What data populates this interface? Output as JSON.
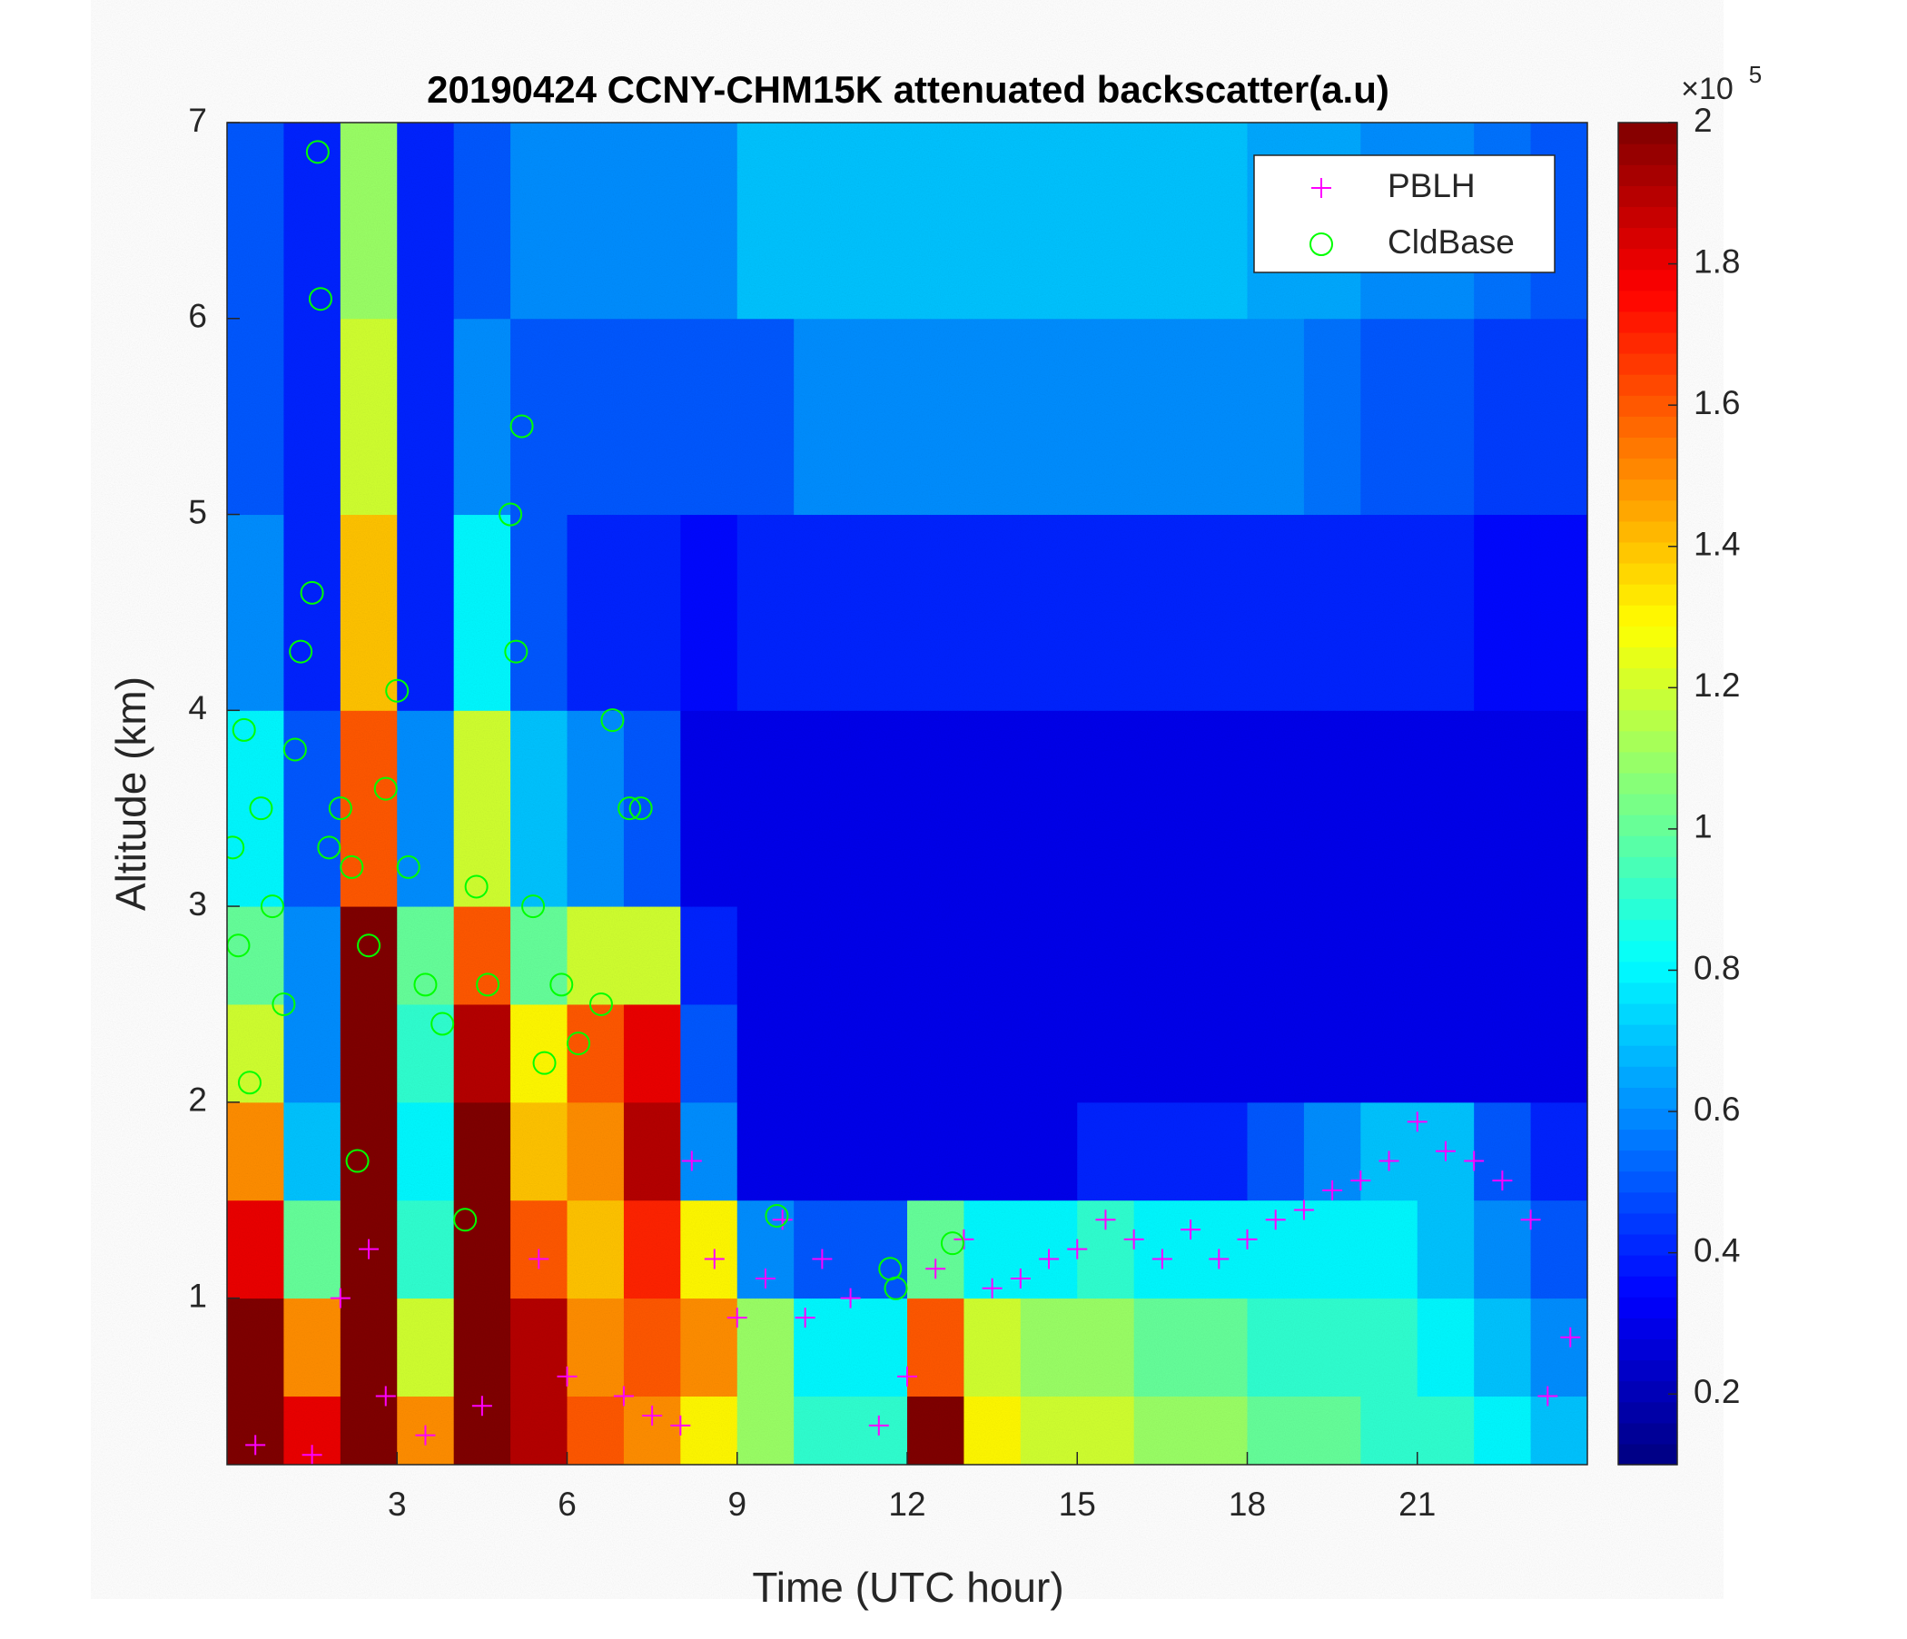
{
  "chart_data": {
    "type": "heatmap",
    "title": "20190424 CCNY-CHM15K attenuated backscatter(a.u)",
    "xlabel": "Time (UTC hour)",
    "ylabel": "Altitude (km)",
    "xlim": [
      0,
      24
    ],
    "ylim": [
      0.15,
      7
    ],
    "xticks": [
      3,
      6,
      9,
      12,
      15,
      18,
      21
    ],
    "yticks": [
      1,
      2,
      3,
      4,
      5,
      6,
      7
    ],
    "x_edges": [
      0,
      1,
      2,
      3,
      4,
      5,
      6,
      7,
      8,
      9,
      10,
      11,
      12,
      13,
      14,
      15,
      16,
      17,
      18,
      19,
      20,
      21,
      22,
      23,
      24
    ],
    "y_edges": [
      0.15,
      0.5,
      1,
      1.5,
      2,
      2.5,
      3,
      4,
      5,
      6,
      7
    ],
    "z": [
      [
        2,
        1.8,
        2,
        1.5,
        2,
        1.9,
        1.6,
        1.5,
        1.3,
        1.1,
        0.9,
        0.9,
        2,
        1.3,
        1.2,
        1.2,
        1.1,
        1.1,
        1.0,
        1.0,
        0.9,
        0.9,
        0.8,
        0.7
      ],
      [
        2,
        1.5,
        2,
        1.2,
        2,
        1.9,
        1.5,
        1.6,
        1.5,
        1.1,
        0.8,
        0.8,
        1.6,
        1.2,
        1.1,
        1.1,
        1.0,
        1.0,
        0.9,
        0.9,
        0.9,
        0.8,
        0.7,
        0.6
      ],
      [
        1.8,
        1.0,
        2,
        0.9,
        2,
        1.6,
        1.4,
        1.7,
        1.3,
        0.6,
        0.5,
        0.5,
        1.0,
        0.8,
        0.8,
        0.9,
        0.8,
        0.8,
        0.8,
        0.8,
        0.8,
        0.7,
        0.6,
        0.5
      ],
      [
        1.5,
        0.7,
        2,
        0.8,
        2,
        1.4,
        1.5,
        1.9,
        0.6,
        0.3,
        0.3,
        0.3,
        0.3,
        0.3,
        0.3,
        0.4,
        0.4,
        0.4,
        0.5,
        0.6,
        0.7,
        0.7,
        0.5,
        0.4
      ],
      [
        1.2,
        0.6,
        2,
        0.9,
        1.9,
        1.3,
        1.6,
        1.8,
        0.5,
        0.3,
        0.3,
        0.3,
        0.3,
        0.3,
        0.3,
        0.3,
        0.3,
        0.3,
        0.3,
        0.3,
        0.3,
        0.3,
        0.3,
        0.3
      ],
      [
        1.0,
        0.6,
        2,
        1.0,
        1.6,
        1.0,
        1.2,
        1.2,
        0.4,
        0.3,
        0.3,
        0.3,
        0.3,
        0.3,
        0.3,
        0.3,
        0.3,
        0.3,
        0.3,
        0.3,
        0.3,
        0.3,
        0.3,
        0.3
      ],
      [
        0.8,
        0.5,
        1.6,
        0.6,
        1.2,
        0.7,
        0.6,
        0.5,
        0.3,
        0.3,
        0.3,
        0.3,
        0.3,
        0.3,
        0.3,
        0.3,
        0.3,
        0.3,
        0.3,
        0.3,
        0.3,
        0.3,
        0.3,
        0.3
      ],
      [
        0.6,
        0.4,
        1.4,
        0.4,
        0.8,
        0.5,
        0.4,
        0.4,
        0.35,
        0.4,
        0.4,
        0.4,
        0.4,
        0.4,
        0.4,
        0.4,
        0.4,
        0.4,
        0.4,
        0.4,
        0.4,
        0.4,
        0.35,
        0.35
      ],
      [
        0.5,
        0.4,
        1.2,
        0.4,
        0.6,
        0.5,
        0.5,
        0.5,
        0.5,
        0.5,
        0.6,
        0.6,
        0.6,
        0.6,
        0.6,
        0.6,
        0.6,
        0.6,
        0.6,
        0.55,
        0.5,
        0.5,
        0.45,
        0.45
      ],
      [
        0.5,
        0.4,
        1.1,
        0.4,
        0.5,
        0.6,
        0.6,
        0.6,
        0.6,
        0.7,
        0.7,
        0.7,
        0.7,
        0.7,
        0.7,
        0.7,
        0.7,
        0.7,
        0.65,
        0.65,
        0.6,
        0.6,
        0.55,
        0.5
      ]
    ],
    "colormap": "jet",
    "clim": [
      0.1,
      2
    ],
    "colorbar_ticks": [
      0.2,
      0.4,
      0.6,
      0.8,
      1,
      1.2,
      1.4,
      1.6,
      1.8,
      2
    ],
    "colorbar_multiplier": "×10",
    "colorbar_exponent": "5",
    "legend": "upper right",
    "overlays": [
      {
        "type": "scatter",
        "name": "PBLH",
        "marker": "+",
        "color": "#ff00ff",
        "x": [
          0.5,
          1.5,
          2,
          2.5,
          2.8,
          3.5,
          4.5,
          5.5,
          6,
          7,
          7.5,
          8,
          8.2,
          8.6,
          9,
          9.5,
          9.8,
          10.2,
          10.5,
          11,
          11.5,
          12,
          12.5,
          13,
          13.5,
          14,
          14.5,
          15,
          15.5,
          16,
          16.5,
          17,
          17.5,
          18,
          18.5,
          19,
          19.5,
          20,
          20.5,
          21,
          21.5,
          22,
          22.5,
          23,
          23.3,
          23.7
        ],
        "y": [
          0.25,
          0.2,
          1.0,
          1.25,
          0.5,
          0.3,
          0.45,
          1.2,
          0.6,
          0.5,
          0.4,
          0.35,
          1.7,
          1.2,
          0.9,
          1.1,
          1.4,
          0.9,
          1.2,
          1.0,
          0.35,
          0.6,
          1.15,
          1.3,
          1.05,
          1.1,
          1.2,
          1.25,
          1.4,
          1.3,
          1.2,
          1.35,
          1.2,
          1.3,
          1.4,
          1.45,
          1.55,
          1.6,
          1.7,
          1.9,
          1.75,
          1.7,
          1.6,
          1.4,
          0.5,
          0.8
        ]
      },
      {
        "type": "scatter",
        "name": "CldBase",
        "marker": "o",
        "color": "#00ff00",
        "x": [
          0.1,
          0.2,
          0.3,
          0.4,
          0.6,
          0.8,
          1,
          1.2,
          1.3,
          1.5,
          1.6,
          1.65,
          1.8,
          2,
          2.2,
          2.3,
          2.5,
          2.8,
          3,
          3.2,
          3.5,
          3.8,
          4.2,
          4.4,
          4.6,
          5,
          5.1,
          5.2,
          5.4,
          5.6,
          5.9,
          6.2,
          6.6,
          6.8,
          7.1,
          7.3,
          9.7,
          11.7,
          11.8,
          12.8
        ],
        "y": [
          3.3,
          2.8,
          3.9,
          2.1,
          3.5,
          3.0,
          2.5,
          3.8,
          4.3,
          4.6,
          6.85,
          6.1,
          3.3,
          3.5,
          3.2,
          1.7,
          2.8,
          3.6,
          4.1,
          3.2,
          2.6,
          2.4,
          1.4,
          3.1,
          2.6,
          5.0,
          4.3,
          5.45,
          3.0,
          2.2,
          2.6,
          2.3,
          2.5,
          3.95,
          3.5,
          3.5,
          1.42,
          1.15,
          1.05,
          1.28
        ]
      }
    ]
  }
}
